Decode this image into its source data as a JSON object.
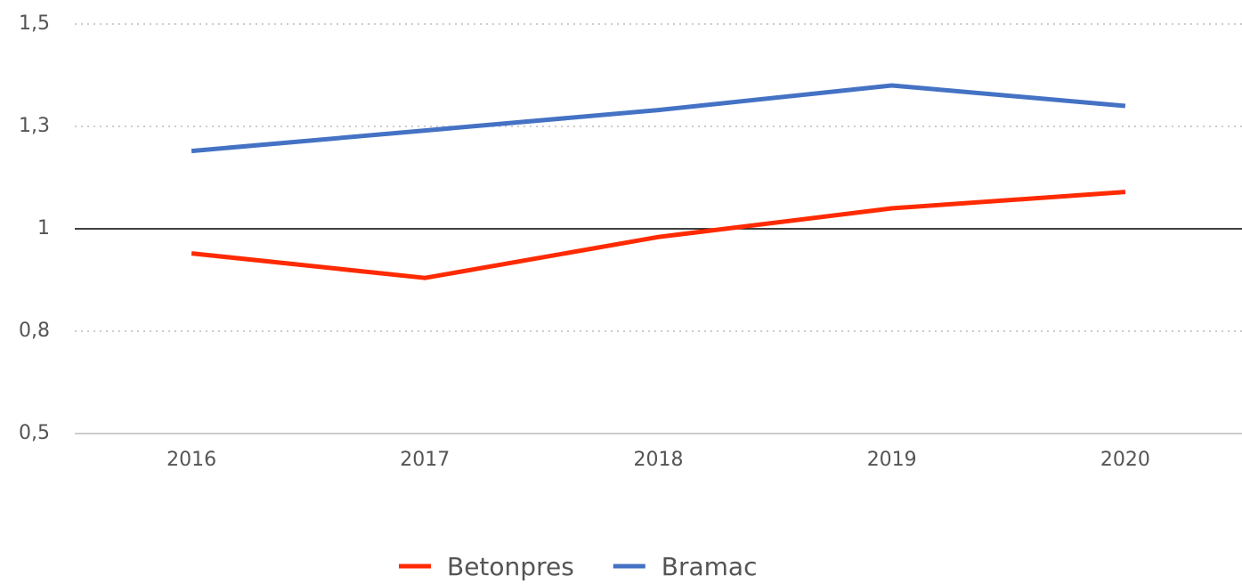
{
  "chart_data": {
    "type": "line",
    "categories": [
      "2016",
      "2017",
      "2018",
      "2019",
      "2020"
    ],
    "series": [
      {
        "name": "Betonpres",
        "color": "#ff2a00",
        "values": [
          0.94,
          0.88,
          0.98,
          1.05,
          1.09
        ]
      },
      {
        "name": "Bramac",
        "color": "#4472c4",
        "values": [
          1.19,
          1.24,
          1.29,
          1.35,
          1.3
        ]
      }
    ],
    "ylim": [
      0.5,
      1.5
    ],
    "yticks": [
      {
        "value": 1.5,
        "label": "1,5"
      },
      {
        "value": 1.25,
        "label": "1,3"
      },
      1,
      {
        "value": 0.75,
        "label": "0,8"
      },
      {
        "value": 0.5,
        "label": "0,5"
      }
    ],
    "grid": true,
    "legend": "bottom"
  }
}
